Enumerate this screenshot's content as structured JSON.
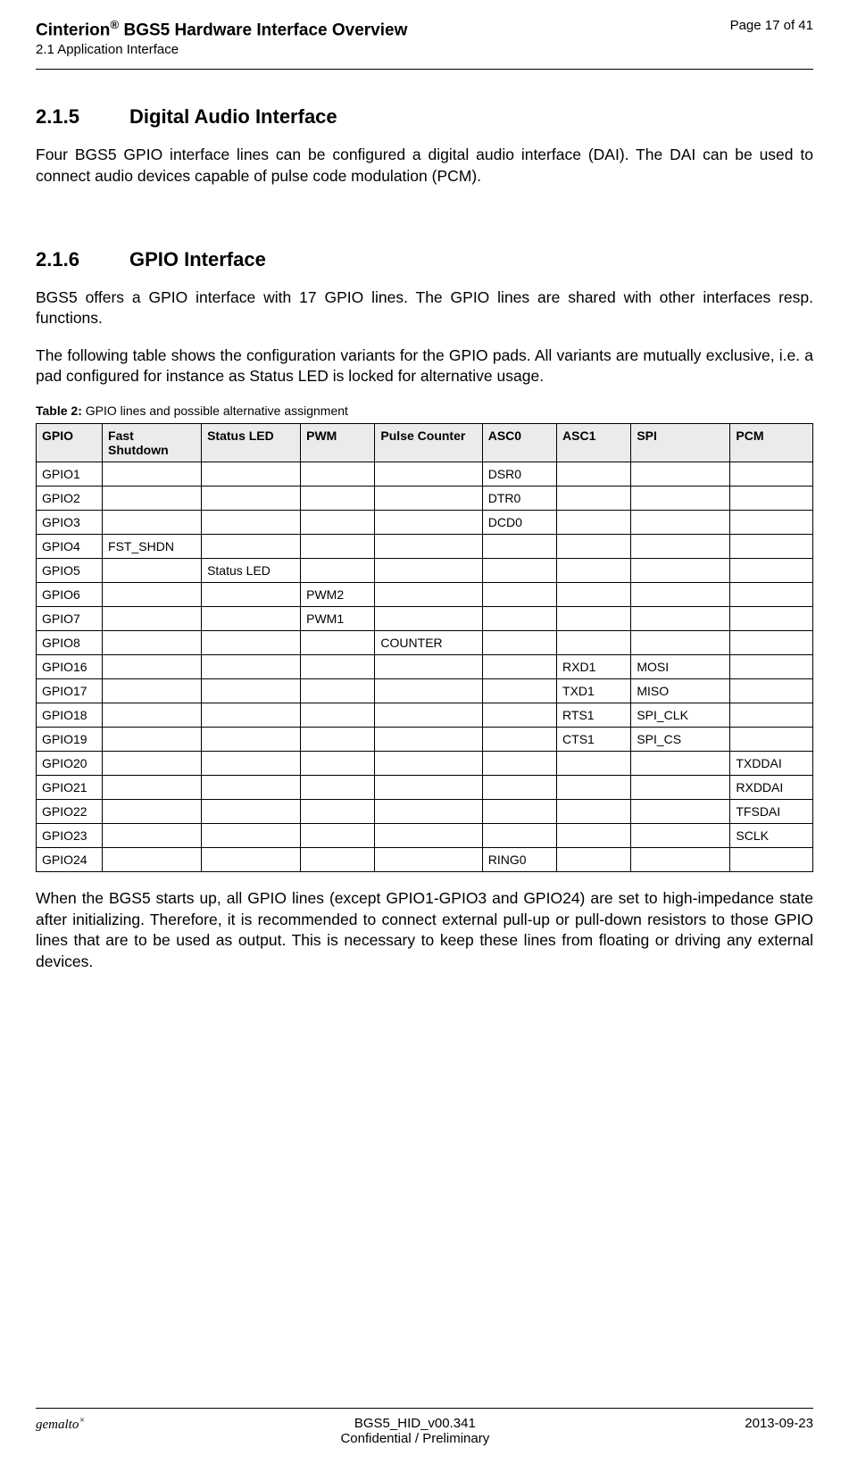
{
  "header": {
    "title_prefix": "Cinterion",
    "title_sup": "®",
    "title_rest": " BGS5 Hardware Interface Overview",
    "subtitle": "2.1 Application Interface",
    "page": "Page 17 of 41"
  },
  "section1": {
    "num": "2.1.5",
    "title": "Digital Audio Interface",
    "para": "Four BGS5 GPIO interface lines can be configured a digital audio interface (DAI). The DAI can be used to connect audio devices capable of pulse code modulation (PCM)."
  },
  "section2": {
    "num": "2.1.6",
    "title": "GPIO Interface",
    "para1": "BGS5 offers a GPIO interface with 17 GPIO lines. The GPIO lines are shared with other interfaces resp. functions.",
    "para2": "The following table shows the configuration variants for the GPIO pads. All variants are mutually exclusive, i.e. a pad configured for instance as Status LED is locked for alternative usage."
  },
  "table": {
    "caption_prefix": "Table 2:  ",
    "caption": "GPIO lines and possible alternative assignment",
    "columns": [
      "GPIO",
      "Fast Shutdown",
      "Status LED",
      "PWM",
      "Pulse Counter",
      "ASC0",
      "ASC1",
      "SPI",
      "PCM"
    ],
    "col_widths": [
      "8%",
      "12%",
      "12%",
      "9%",
      "13%",
      "9%",
      "9%",
      "12%",
      "10%"
    ],
    "rows": [
      [
        "GPIO1",
        "",
        "",
        "",
        "",
        "DSR0",
        "",
        "",
        ""
      ],
      [
        "GPIO2",
        "",
        "",
        "",
        "",
        "DTR0",
        "",
        "",
        ""
      ],
      [
        "GPIO3",
        "",
        "",
        "",
        "",
        "DCD0",
        "",
        "",
        ""
      ],
      [
        "GPIO4",
        "FST_SHDN",
        "",
        "",
        "",
        "",
        "",
        "",
        ""
      ],
      [
        "GPIO5",
        "",
        "Status LED",
        "",
        "",
        "",
        "",
        "",
        ""
      ],
      [
        "GPIO6",
        "",
        "",
        "PWM2",
        "",
        "",
        "",
        "",
        ""
      ],
      [
        "GPIO7",
        "",
        "",
        "PWM1",
        "",
        "",
        "",
        "",
        ""
      ],
      [
        "GPIO8",
        "",
        "",
        "",
        "COUNTER",
        "",
        "",
        "",
        ""
      ],
      [
        "GPIO16",
        "",
        "",
        "",
        "",
        "",
        "RXD1",
        "MOSI",
        ""
      ],
      [
        "GPIO17",
        "",
        "",
        "",
        "",
        "",
        "TXD1",
        "MISO",
        ""
      ],
      [
        "GPIO18",
        "",
        "",
        "",
        "",
        "",
        "RTS1",
        "SPI_CLK",
        ""
      ],
      [
        "GPIO19",
        "",
        "",
        "",
        "",
        "",
        "CTS1",
        "SPI_CS",
        ""
      ],
      [
        "GPIO20",
        "",
        "",
        "",
        "",
        "",
        "",
        "",
        "TXDDAI"
      ],
      [
        "GPIO21",
        "",
        "",
        "",
        "",
        "",
        "",
        "",
        "RXDDAI"
      ],
      [
        "GPIO22",
        "",
        "",
        "",
        "",
        "",
        "",
        "",
        "TFSDAI"
      ],
      [
        "GPIO23",
        "",
        "",
        "",
        "",
        "",
        "",
        "",
        "SCLK"
      ],
      [
        "GPIO24",
        "",
        "",
        "",
        "",
        "RING0",
        "",
        "",
        ""
      ]
    ]
  },
  "closing_para": "When the BGS5 starts up, all GPIO lines (except GPIO1-GPIO3 and GPIO24) are set to high-impedance state after initializing. Therefore, it is recommended to connect external pull-up or pull-down resistors to those GPIO lines that are to be used as output. This is necessary to keep these lines from floating or driving any external devices.",
  "footer": {
    "left": "gemalto",
    "left_sup": "×",
    "center1": "BGS5_HID_v00.341",
    "center2": "Confidential / Preliminary",
    "right": "2013-09-23"
  }
}
